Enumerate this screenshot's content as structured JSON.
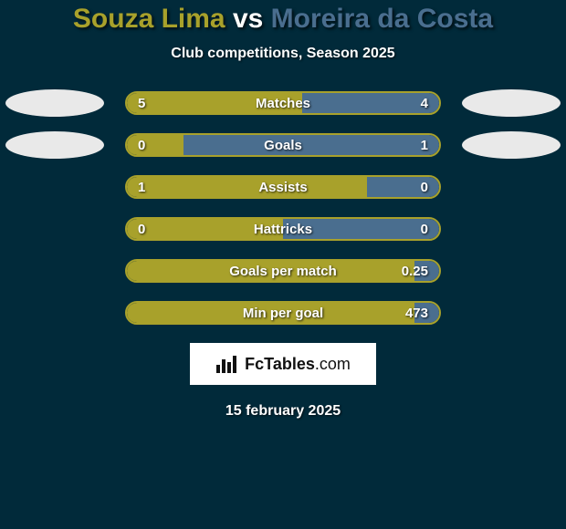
{
  "background_color": "#012a3a",
  "player1": {
    "name": "Souza Lima",
    "color": "#a8a12b"
  },
  "player2": {
    "name": "Moreira da Costa",
    "color": "#4a6e8f"
  },
  "title_vs": "vs",
  "subtitle": "Club competitions, Season 2025",
  "bar": {
    "track_width": 346,
    "track_height": 26,
    "border_radius": 13,
    "label_fontsize": 15,
    "label_color": "#ffffff"
  },
  "ovals": {
    "color": "#e9e9e9",
    "width": 108,
    "height": 30,
    "left_rows": [
      0,
      1
    ],
    "right_rows": [
      0,
      1
    ]
  },
  "stats": [
    {
      "label": "Matches",
      "left_value": "5",
      "right_value": "4",
      "left_pct": 56,
      "right_pct": 44
    },
    {
      "label": "Goals",
      "left_value": "0",
      "right_value": "1",
      "left_pct": 18,
      "right_pct": 82
    },
    {
      "label": "Assists",
      "left_value": "1",
      "right_value": "0",
      "left_pct": 77,
      "right_pct": 23
    },
    {
      "label": "Hattricks",
      "left_value": "0",
      "right_value": "0",
      "left_pct": 50,
      "right_pct": 50
    },
    {
      "label": "Goals per match",
      "left_value": "",
      "right_value": "0.25",
      "left_pct": 92,
      "right_pct": 8
    },
    {
      "label": "Min per goal",
      "left_value": "",
      "right_value": "473",
      "left_pct": 92,
      "right_pct": 8
    }
  ],
  "badge": {
    "text_prefix": "Fc",
    "text_main": "Tables",
    "text_suffix": ".com",
    "bg": "#ffffff"
  },
  "date": "15 february 2025"
}
